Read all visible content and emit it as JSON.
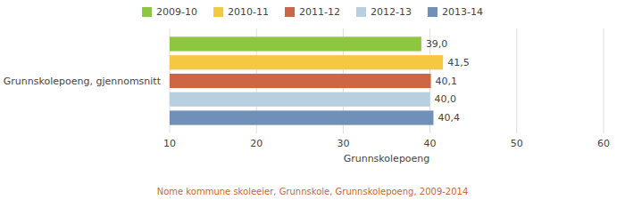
{
  "chart_data": {
    "type": "bar",
    "orientation": "horizontal",
    "categories": [
      "Grunnskolepoeng, gjennomsnitt"
    ],
    "series": [
      {
        "name": "2009-10",
        "color": "#8dc63f",
        "values": [
          39.0
        ],
        "value_labels": [
          "39,0"
        ]
      },
      {
        "name": "2010-11",
        "color": "#f5c842",
        "values": [
          41.5
        ],
        "value_labels": [
          "41,5"
        ]
      },
      {
        "name": "2011-12",
        "color": "#cc6644",
        "values": [
          40.1
        ],
        "value_labels": [
          "40,1"
        ]
      },
      {
        "name": "2012-13",
        "color": "#b8cfe0",
        "values": [
          40.0
        ],
        "value_labels": [
          "40,0"
        ]
      },
      {
        "name": "2013-14",
        "color": "#7090b8",
        "values": [
          40.4
        ],
        "value_labels": [
          "40,4"
        ]
      }
    ],
    "xlabel": "Grunnskolepoeng",
    "xlim": [
      10,
      60
    ],
    "xticks": [
      10,
      20,
      30,
      40,
      50,
      60
    ],
    "grid": true,
    "data_labels": true,
    "legend": "top",
    "footnote": "Nome kommune skoleeier, Grunnskole, Grunnskolepoeng, 2009-2014"
  }
}
